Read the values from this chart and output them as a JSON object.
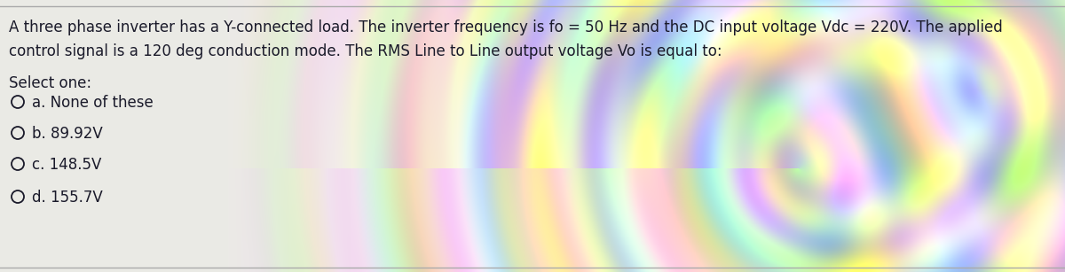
{
  "question_line1": "A three phase inverter has a Y-connected load. The inverter frequency is fo = 50 Hz and the DC input voltage Vdc = 220V. The applied",
  "question_line2": "control signal is a 120 deg conduction mode. The RMS Line to Line output voltage Vo is equal to:",
  "select_label": "Select one:",
  "options": [
    "a. None of these",
    "b. 89.92V",
    "c. 148.5V",
    "d. 155.7V"
  ],
  "bg_color_left": "#e8e8e0",
  "bg_color_right": "#d4d0a0",
  "text_color": "#1a1a2a",
  "font_size_question": 12.0,
  "font_size_options": 12.0,
  "border_color": "#aaaaaa"
}
